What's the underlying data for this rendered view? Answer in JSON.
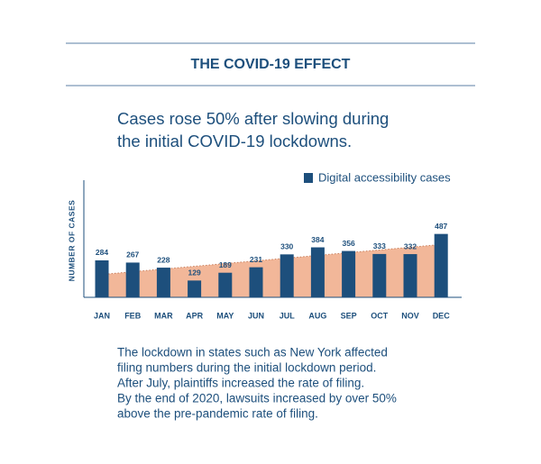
{
  "chart_data": {
    "type": "bar",
    "title": "THE COVID-19 EFFECT",
    "subtitle": [
      "Cases rose 50% after slowing during",
      "the initial COVID-19 lockdowns."
    ],
    "y_label": "NUMBER OF CASES",
    "categories": [
      "JAN",
      "FEB",
      "MAR",
      "APR",
      "MAY",
      "JUN",
      "JUL",
      "AUG",
      "SEP",
      "OCT",
      "NOV",
      "DEC"
    ],
    "series": [
      {
        "name": "Digital accessibility cases",
        "color": "#1d4f7c",
        "values": [
          284,
          267,
          228,
          129,
          189,
          231,
          330,
          384,
          356,
          333,
          332,
          487
        ]
      }
    ],
    "ylim": [
      0,
      900
    ],
    "legend": "top-right",
    "notes": [
      "The lockdown in states such as New York affected",
      "filing numbers during the initial lockdown period.",
      "After July, plaintiffs increased the rate of filing.",
      "By the end of 2020, lawsuits increased by over 50%",
      "above the pre-pandemic rate of filing."
    ]
  }
}
